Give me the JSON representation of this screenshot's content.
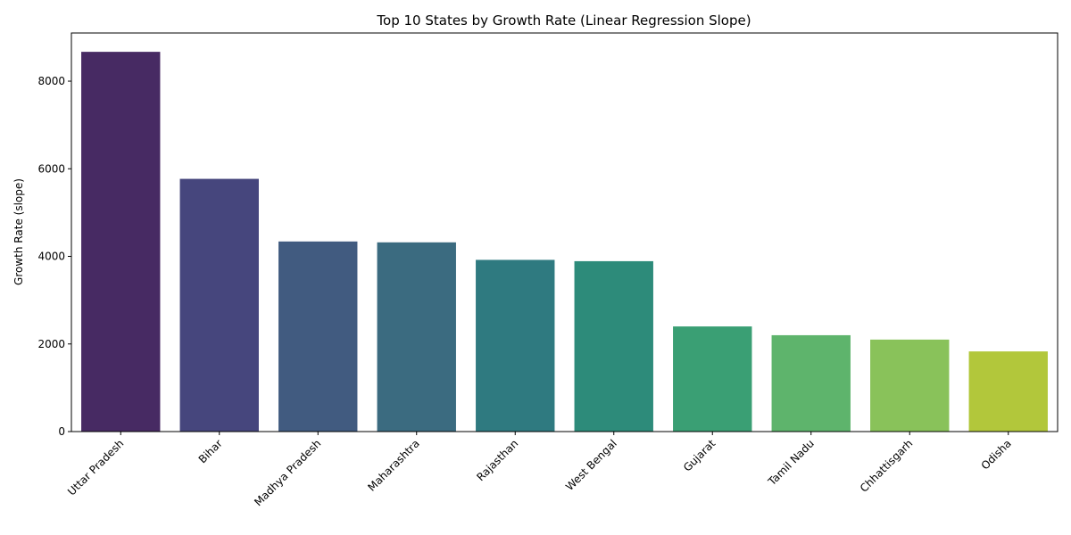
{
  "chart_data": {
    "type": "bar",
    "title": "Top 10 States by Growth Rate (Linear Regression Slope)",
    "xlabel": "",
    "ylabel": "Growth Rate (slope)",
    "categories": [
      "Uttar Pradesh",
      "Bihar",
      "Madhya Pradesh",
      "Maharashtra",
      "Rajasthan",
      "West Bengal",
      "Gujarat",
      "Tamil Nadu",
      "Chhattisgarh",
      "Odisha"
    ],
    "values": [
      8670,
      5770,
      4340,
      4320,
      3920,
      3890,
      2400,
      2200,
      2100,
      1830
    ],
    "ylim": [
      0,
      9100
    ],
    "yticks": [
      0,
      2000,
      4000,
      6000,
      8000
    ],
    "grid": false,
    "legend": "none",
    "colors": [
      "#472a63",
      "#46467d",
      "#415b80",
      "#3b6b80",
      "#2f7a80",
      "#2d8b7a",
      "#3a9f74",
      "#5eb46c",
      "#89c25a",
      "#b2c73b"
    ]
  }
}
